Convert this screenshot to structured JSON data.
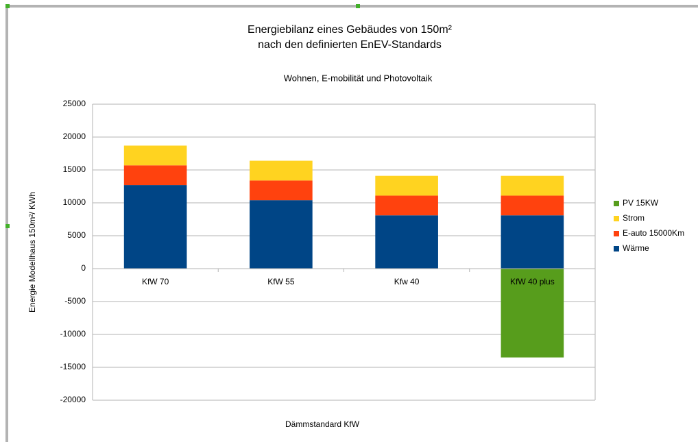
{
  "chart_data": {
    "type": "stacked_bar",
    "title": "Energiebilanz eines Gebäudes von 150m²",
    "title_line2": "nach den definierten EnEV-Standards",
    "subtitle": "Wohnen, E-mobilität und Photovoltaik",
    "x_label": "Dämmstandard KfW",
    "y_label": "Energie  Modellhaus 150m²/ KWh",
    "categories": [
      "KfW 70",
      "KfW 55",
      "Kfw 40",
      "KfW 40 plus"
    ],
    "series": [
      {
        "name": "Wärme",
        "color": "#004586",
        "values": [
          12700,
          10400,
          8100,
          8100
        ]
      },
      {
        "name": "E-auto 15000Km",
        "color": "#ff420e",
        "values": [
          3000,
          3000,
          3000,
          3000
        ]
      },
      {
        "name": "Strom",
        "color": "#ffd320",
        "values": [
          3000,
          3000,
          3000,
          3000
        ]
      },
      {
        "name": "PV 15KW",
        "color": "#579d1c",
        "values": [
          0,
          0,
          0,
          -13500
        ]
      }
    ],
    "ylim": [
      -20000,
      25000
    ],
    "yticks": [
      -20000,
      -15000,
      -10000,
      -5000,
      0,
      5000,
      10000,
      15000,
      20000,
      25000
    ],
    "grid": true,
    "legend": "right"
  }
}
